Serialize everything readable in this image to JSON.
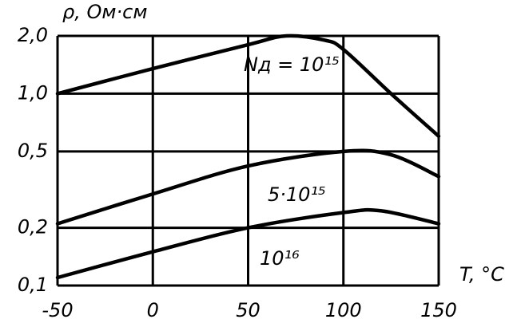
{
  "chart_data": {
    "type": "line",
    "y_label": "ρ, Ом·см",
    "x_label": "T, °C",
    "x": [
      -50,
      0,
      50,
      70,
      90,
      100,
      125,
      150
    ],
    "series": [
      {
        "name": "Nд = 10¹⁵",
        "color": "#000000",
        "x": [
          -50,
          0,
          50,
          70,
          90,
          100,
          125,
          150
        ],
        "values": [
          1.0,
          1.35,
          1.8,
          2.0,
          1.9,
          1.7,
          1.0,
          0.6
        ]
      },
      {
        "name": "5·10¹⁵",
        "color": "#000000",
        "x": [
          -50,
          0,
          50,
          100,
          125,
          150
        ],
        "values": [
          0.21,
          0.3,
          0.42,
          0.5,
          0.48,
          0.37
        ]
      },
      {
        "name": "10¹⁶",
        "color": "#000000",
        "x": [
          -50,
          0,
          50,
          100,
          120,
          150
        ],
        "values": [
          0.11,
          0.15,
          0.2,
          0.24,
          0.245,
          0.21
        ]
      }
    ],
    "xlim": [
      -50,
      150
    ],
    "xticks": [
      -50,
      0,
      50,
      100,
      150
    ],
    "ylim": [
      0.1,
      2.0
    ],
    "yticks": [
      {
        "value": 2.0,
        "label": "2,0"
      },
      {
        "value": 1.0,
        "label": "1,0"
      },
      {
        "value": 0.5,
        "label": "0,5"
      },
      {
        "value": 0.2,
        "label": "0,2"
      },
      {
        "value": 0.1,
        "label": "0,1"
      }
    ],
    "log_y": true,
    "grid": true
  }
}
